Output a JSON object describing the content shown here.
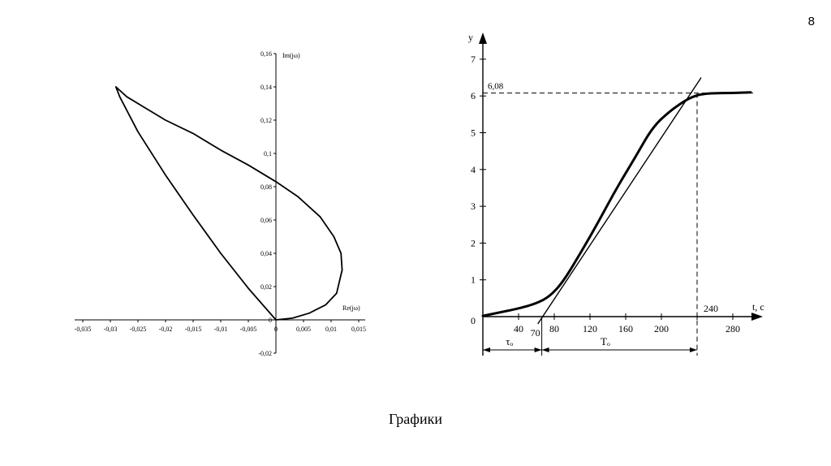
{
  "slide_number": "8",
  "caption": "Графики",
  "chart_data": [
    {
      "type": "line",
      "title": "",
      "xlabel": "Re(jω)",
      "ylabel": "Im(jω)",
      "xlim": [
        -0.035,
        0.015
      ],
      "ylim": [
        -0.02,
        0.16
      ],
      "x_ticks": [
        "-0,035",
        "-0,03",
        "-0,025",
        "-0,02",
        "-0,015",
        "-0,01",
        "-0,005",
        "0",
        "0,005",
        "0,01",
        "0,015"
      ],
      "y_ticks": [
        "0,16",
        "0,14",
        "0,12",
        "0,1",
        "0,08",
        "0,06",
        "0,04",
        "0,02",
        "0",
        "-0,02"
      ],
      "series": [
        {
          "x": [
            0,
            0.003,
            0.006,
            0.009,
            0.011,
            0.012,
            0.0118,
            0.0105,
            0.008,
            0.004,
            0,
            -0.005,
            -0.01,
            -0.015,
            -0.02,
            -0.024,
            -0.027,
            -0.029,
            -0.0283,
            -0.025,
            -0.02,
            -0.015,
            -0.01,
            -0.005,
            0
          ],
          "y": [
            0,
            0.001,
            0.004,
            0.009,
            0.016,
            0.03,
            0.04,
            0.05,
            0.062,
            0.074,
            0.083,
            0.093,
            0.102,
            0.112,
            0.12,
            0.128,
            0.134,
            0.14,
            0.134,
            0.113,
            0.087,
            0.063,
            0.04,
            0.019,
            0
          ]
        }
      ]
    },
    {
      "type": "line",
      "title": "",
      "xlabel": "t, c",
      "ylabel": "y",
      "xlim": [
        0,
        310
      ],
      "ylim": [
        0,
        7.5
      ],
      "x_ticks": [
        40,
        80,
        120,
        160,
        200,
        240,
        280
      ],
      "y_ticks": [
        1,
        2,
        3,
        4,
        5,
        6,
        7
      ],
      "origin_label": "0",
      "annotations": {
        "level_label": "6,08",
        "level_value": 6.08,
        "t_start_label": "70",
        "t_start": 70,
        "t_end": 240,
        "tau_label": "τₒ",
        "T_label": "Tₒ"
      },
      "series": [
        {
          "name": "",
          "x": [
            0,
            20,
            40,
            60,
            75,
            90,
            110,
            130,
            150,
            170,
            190,
            210,
            225,
            235,
            245,
            260,
            280,
            300
          ],
          "y": [
            0.02,
            0.12,
            0.22,
            0.36,
            0.55,
            0.95,
            1.75,
            2.6,
            3.5,
            4.3,
            5.15,
            5.6,
            5.85,
            5.98,
            6.05,
            6.08,
            6.08,
            6.1
          ]
        },
        {
          "name": "",
          "x": [
            67,
            240
          ],
          "y": [
            0,
            6.3
          ]
        }
      ]
    }
  ]
}
